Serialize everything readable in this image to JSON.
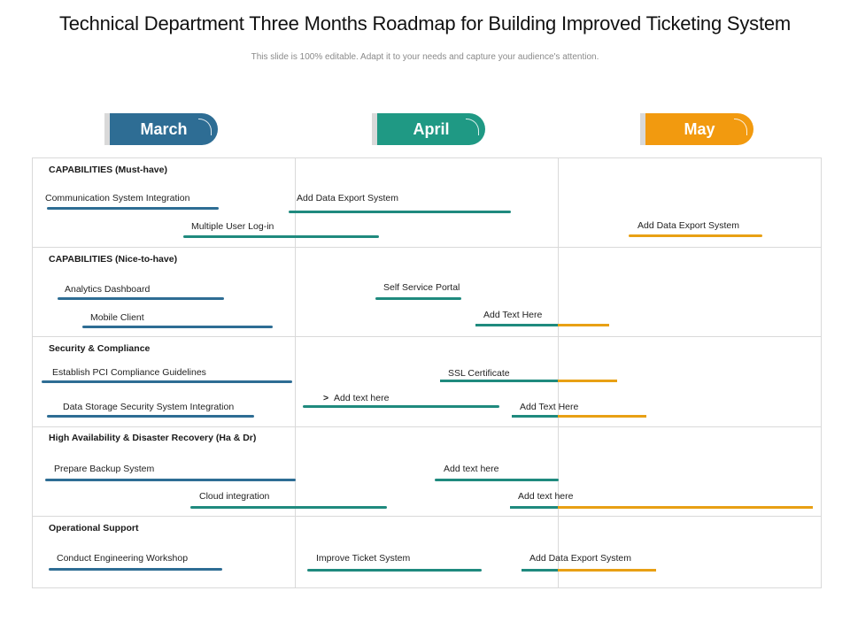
{
  "title": "Technical Department Three Months Roadmap for Building Improved Ticketing System",
  "subtitle": "This slide is 100% editable. Adapt it to your needs and capture your audience's attention.",
  "colors": {
    "march": "#2e6d94",
    "april": "#1f9984",
    "may": "#f29a0f",
    "teal_bar": "#1f8a7e",
    "blue_bar": "#2e6d94",
    "orange_bar": "#e8a014"
  },
  "months": [
    {
      "name": "March"
    },
    {
      "name": "April"
    },
    {
      "name": "May"
    }
  ],
  "sections": [
    {
      "name": "CAPABILITIES (Must-have)"
    },
    {
      "name": "CAPABILITIES (Nice-to-have)"
    },
    {
      "name": "Security & Compliance"
    },
    {
      "name": "High Availability & Disaster Recovery (Ha & Dr)"
    },
    {
      "name": "Operational Support"
    }
  ],
  "tasks": [
    {
      "label": "Communication  System Integration"
    },
    {
      "label": "Add Data Export System"
    },
    {
      "label": "Multiple User Log-in"
    },
    {
      "label": "Add Data Export System"
    },
    {
      "label": "Analytics  Dashboard"
    },
    {
      "label": "Self Service Portal"
    },
    {
      "label": "Mobile Client"
    },
    {
      "label": "Add Text Here"
    },
    {
      "label": "Establish  PCI Compliance Guidelines"
    },
    {
      "label": "SSL Certificate"
    },
    {
      "label": "Add text here"
    },
    {
      "label": "Data Storage Security System Integration"
    },
    {
      "label": "Add Text Here"
    },
    {
      "label": "Prepare Backup System"
    },
    {
      "label": "Add text here"
    },
    {
      "label": "Cloud integration"
    },
    {
      "label": "Add text here"
    },
    {
      "label": "Conduct Engineering Workshop"
    },
    {
      "label": "Improve Ticket System"
    },
    {
      "label": "Add Data  Export System"
    }
  ]
}
